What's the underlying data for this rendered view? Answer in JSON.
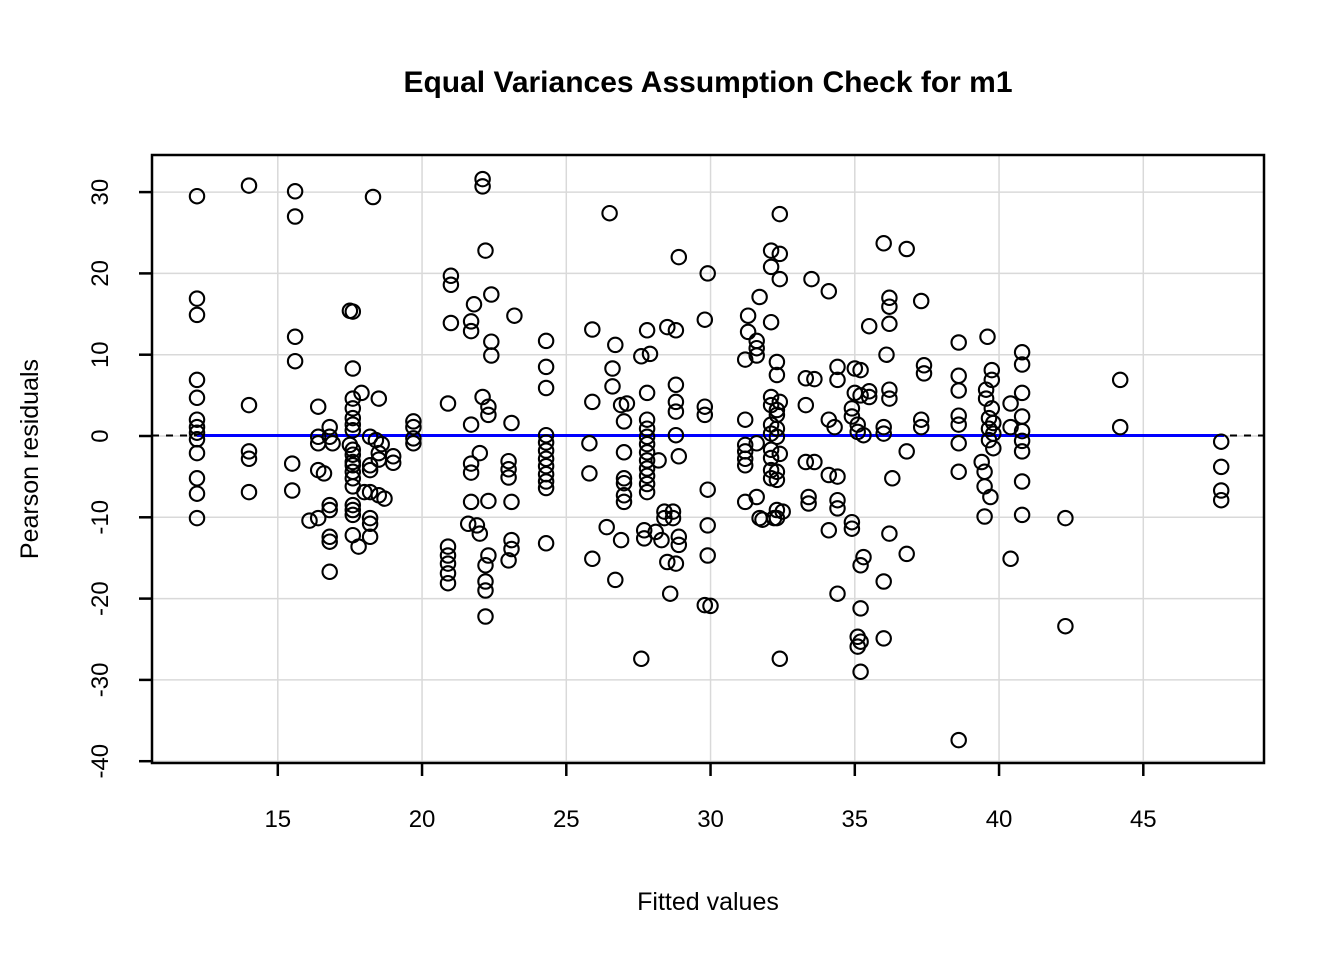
{
  "colors": {
    "background": "#FFFFFF",
    "text": "#000000",
    "grid": "#D9D9D9",
    "box": "#000000",
    "point_stroke": "#000000",
    "zero_line": "#000000",
    "fit_line": "#0000FF"
  },
  "chart_data": {
    "type": "scatter",
    "title": "Equal Variances Assumption Check for m1",
    "xlabel": "Fitted values",
    "ylabel": "Pearson residuals",
    "x_ticks": [
      15,
      20,
      25,
      30,
      35,
      40,
      45
    ],
    "y_ticks": [
      -40,
      -30,
      -20,
      -10,
      0,
      10,
      20,
      30
    ],
    "xlim": [
      10.6,
      49.2
    ],
    "ylim": [
      -40.2,
      34.6
    ],
    "grid": true,
    "legend": "none",
    "point_style": "open-circle",
    "reference_lines": [
      {
        "name": "zero-line",
        "y": 0,
        "style": "dashed",
        "color": "#000000",
        "x_start": 10.6,
        "x_end": 49.2
      },
      {
        "name": "fit-line",
        "y": 0,
        "style": "solid",
        "color": "#0000FF",
        "x_start": 12.2,
        "x_end": 47.8
      }
    ],
    "points": [
      [
        12.2,
        29.5
      ],
      [
        12.2,
        16.9
      ],
      [
        12.2,
        14.9
      ],
      [
        12.2,
        6.9
      ],
      [
        12.2,
        4.7
      ],
      [
        12.2,
        2.0
      ],
      [
        12.2,
        1.1
      ],
      [
        12.2,
        0.4
      ],
      [
        12.2,
        -0.4
      ],
      [
        12.2,
        -2.1
      ],
      [
        12.2,
        -5.2
      ],
      [
        12.2,
        -7.1
      ],
      [
        12.2,
        -10.1
      ],
      [
        14.0,
        30.8
      ],
      [
        14.0,
        3.8
      ],
      [
        14.0,
        -1.9
      ],
      [
        14.0,
        -2.8
      ],
      [
        14.0,
        -6.9
      ],
      [
        15.6,
        30.1
      ],
      [
        15.6,
        27.0
      ],
      [
        15.6,
        12.2
      ],
      [
        15.6,
        9.2
      ],
      [
        15.5,
        -3.4
      ],
      [
        15.5,
        -6.7
      ],
      [
        16.1,
        -10.4
      ],
      [
        16.4,
        3.6
      ],
      [
        16.4,
        -0.1
      ],
      [
        16.4,
        -0.9
      ],
      [
        16.4,
        -4.2
      ],
      [
        16.4,
        -10.1
      ],
      [
        16.6,
        -4.6
      ],
      [
        16.8,
        1.1
      ],
      [
        16.8,
        -0.1
      ],
      [
        16.8,
        -8.5
      ],
      [
        16.8,
        -9.1
      ],
      [
        16.8,
        -12.4
      ],
      [
        16.8,
        -13.0
      ],
      [
        16.8,
        -16.7
      ],
      [
        16.9,
        -0.9
      ],
      [
        17.5,
        15.4
      ],
      [
        17.6,
        15.3
      ],
      [
        17.6,
        8.3
      ],
      [
        17.6,
        4.6
      ],
      [
        17.6,
        3.4
      ],
      [
        17.6,
        2.2
      ],
      [
        17.6,
        1.4
      ],
      [
        17.6,
        0.7
      ],
      [
        17.5,
        -1.1
      ],
      [
        17.6,
        -1.7
      ],
      [
        17.6,
        -2.3
      ],
      [
        17.6,
        -3.2
      ],
      [
        17.6,
        -3.6
      ],
      [
        17.6,
        -4.4
      ],
      [
        17.6,
        -5.2
      ],
      [
        17.6,
        -6.2
      ],
      [
        17.6,
        -8.5
      ],
      [
        17.6,
        -9.1
      ],
      [
        17.6,
        -9.7
      ],
      [
        17.6,
        -12.2
      ],
      [
        17.8,
        -13.6
      ],
      [
        17.9,
        5.3
      ],
      [
        18.0,
        -6.9
      ],
      [
        18.2,
        -0.1
      ],
      [
        18.2,
        -3.6
      ],
      [
        18.2,
        -4.2
      ],
      [
        18.2,
        -6.9
      ],
      [
        18.2,
        -10.1
      ],
      [
        18.2,
        -10.8
      ],
      [
        18.2,
        -12.4
      ],
      [
        18.3,
        29.4
      ],
      [
        18.4,
        -0.5
      ],
      [
        18.5,
        4.6
      ],
      [
        18.5,
        -2.1
      ],
      [
        18.5,
        -2.9
      ],
      [
        18.5,
        -7.3
      ],
      [
        18.6,
        -1.0
      ],
      [
        18.7,
        -7.7
      ],
      [
        19.0,
        -2.5
      ],
      [
        19.0,
        -3.3
      ],
      [
        19.7,
        1.8
      ],
      [
        19.7,
        1.1
      ],
      [
        19.7,
        -0.3
      ],
      [
        19.7,
        -0.9
      ],
      [
        21.0,
        19.7
      ],
      [
        21.0,
        18.6
      ],
      [
        21.0,
        13.9
      ],
      [
        20.9,
        4.0
      ],
      [
        20.9,
        -13.6
      ],
      [
        20.9,
        -14.7
      ],
      [
        20.9,
        -15.7
      ],
      [
        20.9,
        -16.9
      ],
      [
        20.9,
        -18.1
      ],
      [
        21.6,
        -10.8
      ],
      [
        21.7,
        14.1
      ],
      [
        21.7,
        12.9
      ],
      [
        21.7,
        1.4
      ],
      [
        21.7,
        -3.4
      ],
      [
        21.7,
        -4.5
      ],
      [
        21.7,
        -8.1
      ],
      [
        21.8,
        16.2
      ],
      [
        21.9,
        -11.0
      ],
      [
        22.0,
        -2.1
      ],
      [
        22.0,
        -12.0
      ],
      [
        22.1,
        31.6
      ],
      [
        22.1,
        30.7
      ],
      [
        22.1,
        4.8
      ],
      [
        22.2,
        22.8
      ],
      [
        22.2,
        -15.9
      ],
      [
        22.2,
        -17.9
      ],
      [
        22.2,
        -19.0
      ],
      [
        22.2,
        -22.2
      ],
      [
        22.3,
        3.6
      ],
      [
        22.3,
        2.6
      ],
      [
        22.3,
        -8.0
      ],
      [
        22.3,
        -14.7
      ],
      [
        22.4,
        17.4
      ],
      [
        22.4,
        11.6
      ],
      [
        22.4,
        9.9
      ],
      [
        23.0,
        -3.1
      ],
      [
        23.0,
        -4.1
      ],
      [
        23.0,
        -5.1
      ],
      [
        23.0,
        -15.3
      ],
      [
        23.1,
        1.6
      ],
      [
        23.1,
        -8.1
      ],
      [
        23.1,
        -12.8
      ],
      [
        23.1,
        -13.9
      ],
      [
        23.2,
        14.8
      ],
      [
        24.3,
        11.7
      ],
      [
        24.3,
        8.5
      ],
      [
        24.3,
        5.9
      ],
      [
        24.3,
        0.1
      ],
      [
        24.3,
        -0.8
      ],
      [
        24.3,
        -1.8
      ],
      [
        24.3,
        -2.8
      ],
      [
        24.3,
        -3.7
      ],
      [
        24.3,
        -4.7
      ],
      [
        24.3,
        -5.6
      ],
      [
        24.3,
        -6.4
      ],
      [
        24.3,
        -13.2
      ],
      [
        25.8,
        -0.9
      ],
      [
        25.8,
        -4.6
      ],
      [
        25.9,
        13.1
      ],
      [
        25.9,
        4.2
      ],
      [
        25.9,
        -15.1
      ],
      [
        26.4,
        -11.2
      ],
      [
        26.5,
        27.4
      ],
      [
        26.6,
        8.3
      ],
      [
        26.6,
        6.1
      ],
      [
        26.7,
        11.2
      ],
      [
        26.7,
        -17.7
      ],
      [
        26.9,
        3.8
      ],
      [
        26.9,
        -12.8
      ],
      [
        27.0,
        1.8
      ],
      [
        27.0,
        -2.0
      ],
      [
        27.0,
        -5.2
      ],
      [
        27.0,
        -5.8
      ],
      [
        27.0,
        -7.3
      ],
      [
        27.0,
        -8.1
      ],
      [
        27.1,
        4.0
      ],
      [
        27.6,
        9.8
      ],
      [
        27.6,
        -27.4
      ],
      [
        27.7,
        -11.6
      ],
      [
        27.7,
        -12.6
      ],
      [
        27.8,
        13.0
      ],
      [
        27.8,
        5.3
      ],
      [
        27.8,
        2.0
      ],
      [
        27.8,
        0.9
      ],
      [
        27.8,
        -0.1
      ],
      [
        27.8,
        -1.0
      ],
      [
        27.8,
        -2.0
      ],
      [
        27.8,
        -3.0
      ],
      [
        27.8,
        -4.0
      ],
      [
        27.8,
        -4.9
      ],
      [
        27.8,
        -5.9
      ],
      [
        27.8,
        -6.9
      ],
      [
        27.9,
        10.1
      ],
      [
        28.1,
        -11.8
      ],
      [
        28.2,
        -3.0
      ],
      [
        28.3,
        -12.8
      ],
      [
        28.4,
        -9.3
      ],
      [
        28.4,
        -10.1
      ],
      [
        28.5,
        13.4
      ],
      [
        28.5,
        -15.5
      ],
      [
        28.6,
        -19.4
      ],
      [
        28.7,
        -9.3
      ],
      [
        28.7,
        -10.1
      ],
      [
        28.8,
        13.0
      ],
      [
        28.8,
        6.3
      ],
      [
        28.8,
        4.2
      ],
      [
        28.8,
        3.0
      ],
      [
        28.8,
        0.1
      ],
      [
        28.8,
        -15.7
      ],
      [
        28.9,
        22.0
      ],
      [
        28.9,
        -2.5
      ],
      [
        28.9,
        -12.4
      ],
      [
        28.9,
        -13.4
      ],
      [
        29.8,
        14.3
      ],
      [
        29.8,
        3.6
      ],
      [
        29.8,
        2.6
      ],
      [
        29.8,
        -20.8
      ],
      [
        29.9,
        20.0
      ],
      [
        29.9,
        -6.6
      ],
      [
        29.9,
        -11.0
      ],
      [
        29.9,
        -14.7
      ],
      [
        30.0,
        -20.9
      ],
      [
        31.2,
        9.4
      ],
      [
        31.2,
        2.0
      ],
      [
        31.2,
        -1.1
      ],
      [
        31.2,
        -1.9
      ],
      [
        31.2,
        -2.8
      ],
      [
        31.2,
        -3.6
      ],
      [
        31.2,
        -8.1
      ],
      [
        31.3,
        14.8
      ],
      [
        31.3,
        12.8
      ],
      [
        31.6,
        11.7
      ],
      [
        31.6,
        10.8
      ],
      [
        31.6,
        9.9
      ],
      [
        31.6,
        -0.9
      ],
      [
        31.6,
        -7.5
      ],
      [
        31.7,
        17.1
      ],
      [
        31.7,
        -10.1
      ],
      [
        31.8,
        -10.3
      ],
      [
        32.1,
        22.8
      ],
      [
        32.1,
        20.8
      ],
      [
        32.1,
        14.0
      ],
      [
        32.1,
        4.8
      ],
      [
        32.1,
        3.8
      ],
      [
        32.1,
        1.4
      ],
      [
        32.1,
        0.3
      ],
      [
        32.1,
        -1.7
      ],
      [
        32.1,
        -2.7
      ],
      [
        32.1,
        -4.2
      ],
      [
        32.1,
        -5.2
      ],
      [
        32.2,
        -10.1
      ],
      [
        32.3,
        9.1
      ],
      [
        32.3,
        7.5
      ],
      [
        32.3,
        3.2
      ],
      [
        32.3,
        2.6
      ],
      [
        32.3,
        0.9
      ],
      [
        32.3,
        -0.1
      ],
      [
        32.3,
        -4.4
      ],
      [
        32.3,
        -5.4
      ],
      [
        32.3,
        -9.1
      ],
      [
        32.3,
        -10.1
      ],
      [
        32.4,
        27.3
      ],
      [
        32.4,
        22.4
      ],
      [
        32.4,
        19.3
      ],
      [
        32.4,
        4.2
      ],
      [
        32.4,
        -2.2
      ],
      [
        32.4,
        -27.4
      ],
      [
        32.5,
        -9.3
      ],
      [
        33.3,
        7.1
      ],
      [
        33.3,
        3.8
      ],
      [
        33.3,
        -3.2
      ],
      [
        33.4,
        -7.5
      ],
      [
        33.4,
        -8.3
      ],
      [
        33.5,
        19.3
      ],
      [
        33.6,
        7.0
      ],
      [
        33.6,
        -3.2
      ],
      [
        34.1,
        17.8
      ],
      [
        34.1,
        2.0
      ],
      [
        34.1,
        -4.8
      ],
      [
        34.1,
        -11.6
      ],
      [
        34.3,
        1.1
      ],
      [
        34.4,
        8.5
      ],
      [
        34.4,
        6.9
      ],
      [
        34.4,
        -5.0
      ],
      [
        34.4,
        -7.9
      ],
      [
        34.4,
        -8.9
      ],
      [
        34.4,
        -19.4
      ],
      [
        34.9,
        3.4
      ],
      [
        34.9,
        2.4
      ],
      [
        34.9,
        -10.6
      ],
      [
        34.9,
        -11.4
      ],
      [
        35.0,
        8.3
      ],
      [
        35.0,
        5.3
      ],
      [
        35.1,
        1.4
      ],
      [
        35.1,
        0.5
      ],
      [
        35.1,
        -24.7
      ],
      [
        35.1,
        -25.9
      ],
      [
        35.2,
        8.1
      ],
      [
        35.2,
        5.0
      ],
      [
        35.2,
        -15.9
      ],
      [
        35.2,
        -21.2
      ],
      [
        35.2,
        -25.3
      ],
      [
        35.2,
        -29.0
      ],
      [
        35.3,
        0.1
      ],
      [
        35.3,
        -14.9
      ],
      [
        35.5,
        13.5
      ],
      [
        35.5,
        5.5
      ],
      [
        35.5,
        4.8
      ],
      [
        36.0,
        23.7
      ],
      [
        36.0,
        1.1
      ],
      [
        36.0,
        0.3
      ],
      [
        36.0,
        -17.9
      ],
      [
        36.0,
        -24.9
      ],
      [
        36.1,
        10.0
      ],
      [
        36.2,
        17.0
      ],
      [
        36.2,
        15.9
      ],
      [
        36.2,
        13.8
      ],
      [
        36.2,
        5.7
      ],
      [
        36.2,
        4.6
      ],
      [
        36.2,
        -12.0
      ],
      [
        36.3,
        -5.2
      ],
      [
        36.8,
        23.0
      ],
      [
        36.8,
        -1.9
      ],
      [
        36.8,
        -14.5
      ],
      [
        37.3,
        16.6
      ],
      [
        37.3,
        2.0
      ],
      [
        37.3,
        1.1
      ],
      [
        37.4,
        8.7
      ],
      [
        37.4,
        7.7
      ],
      [
        38.6,
        11.5
      ],
      [
        38.6,
        7.4
      ],
      [
        38.6,
        5.6
      ],
      [
        38.6,
        2.5
      ],
      [
        38.6,
        1.4
      ],
      [
        38.6,
        -0.9
      ],
      [
        38.6,
        -4.4
      ],
      [
        38.6,
        -37.4
      ],
      [
        39.6,
        12.2
      ],
      [
        39.75,
        8.1
      ],
      [
        39.75,
        6.9
      ],
      [
        39.55,
        5.7
      ],
      [
        39.55,
        4.6
      ],
      [
        39.75,
        3.4
      ],
      [
        39.65,
        2.2
      ],
      [
        39.8,
        1.6
      ],
      [
        39.65,
        0.9
      ],
      [
        39.8,
        0.3
      ],
      [
        39.65,
        -0.5
      ],
      [
        39.8,
        -1.5
      ],
      [
        39.4,
        -3.2
      ],
      [
        39.5,
        -4.4
      ],
      [
        39.5,
        -6.2
      ],
      [
        39.7,
        -7.5
      ],
      [
        39.5,
        -9.9
      ],
      [
        40.4,
        4.0
      ],
      [
        40.4,
        1.1
      ],
      [
        40.4,
        -15.1
      ],
      [
        40.8,
        10.3
      ],
      [
        40.8,
        8.8
      ],
      [
        40.8,
        5.3
      ],
      [
        40.8,
        2.4
      ],
      [
        40.8,
        0.6
      ],
      [
        40.8,
        -0.6
      ],
      [
        40.8,
        -1.9
      ],
      [
        40.8,
        -5.6
      ],
      [
        40.8,
        -9.7
      ],
      [
        42.3,
        -10.1
      ],
      [
        42.3,
        -23.4
      ],
      [
        44.2,
        6.9
      ],
      [
        44.2,
        1.1
      ],
      [
        47.7,
        -0.7
      ],
      [
        47.7,
        -3.8
      ],
      [
        47.7,
        -6.7
      ],
      [
        47.7,
        -7.9
      ]
    ]
  }
}
